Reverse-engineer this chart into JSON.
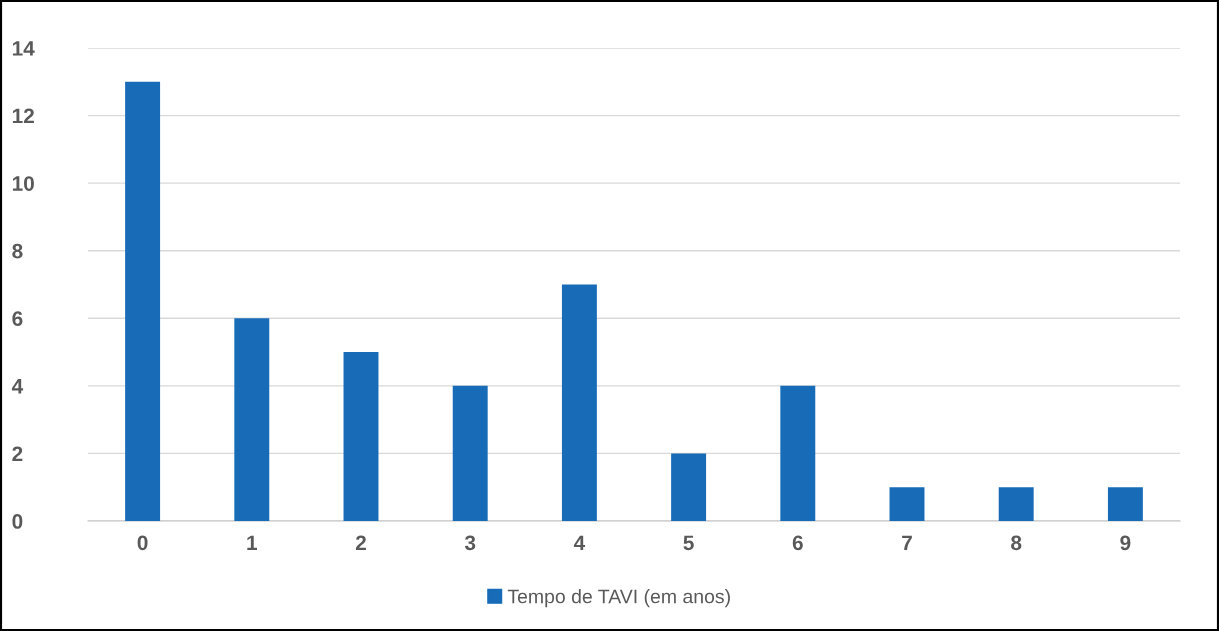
{
  "chart_data": {
    "type": "bar",
    "categories": [
      "0",
      "1",
      "2",
      "3",
      "4",
      "5",
      "6",
      "7",
      "8",
      "9"
    ],
    "series": [
      {
        "name": "Tempo de TAVI (em anos)",
        "color": "#176bb7",
        "values": [
          13,
          6,
          5,
          4,
          7,
          2,
          4,
          1,
          1,
          1
        ]
      }
    ],
    "ylim": [
      0,
      14
    ],
    "yticks": [
      0,
      2,
      4,
      6,
      8,
      10,
      12,
      14
    ],
    "grid": "y",
    "legend": "bottom"
  }
}
